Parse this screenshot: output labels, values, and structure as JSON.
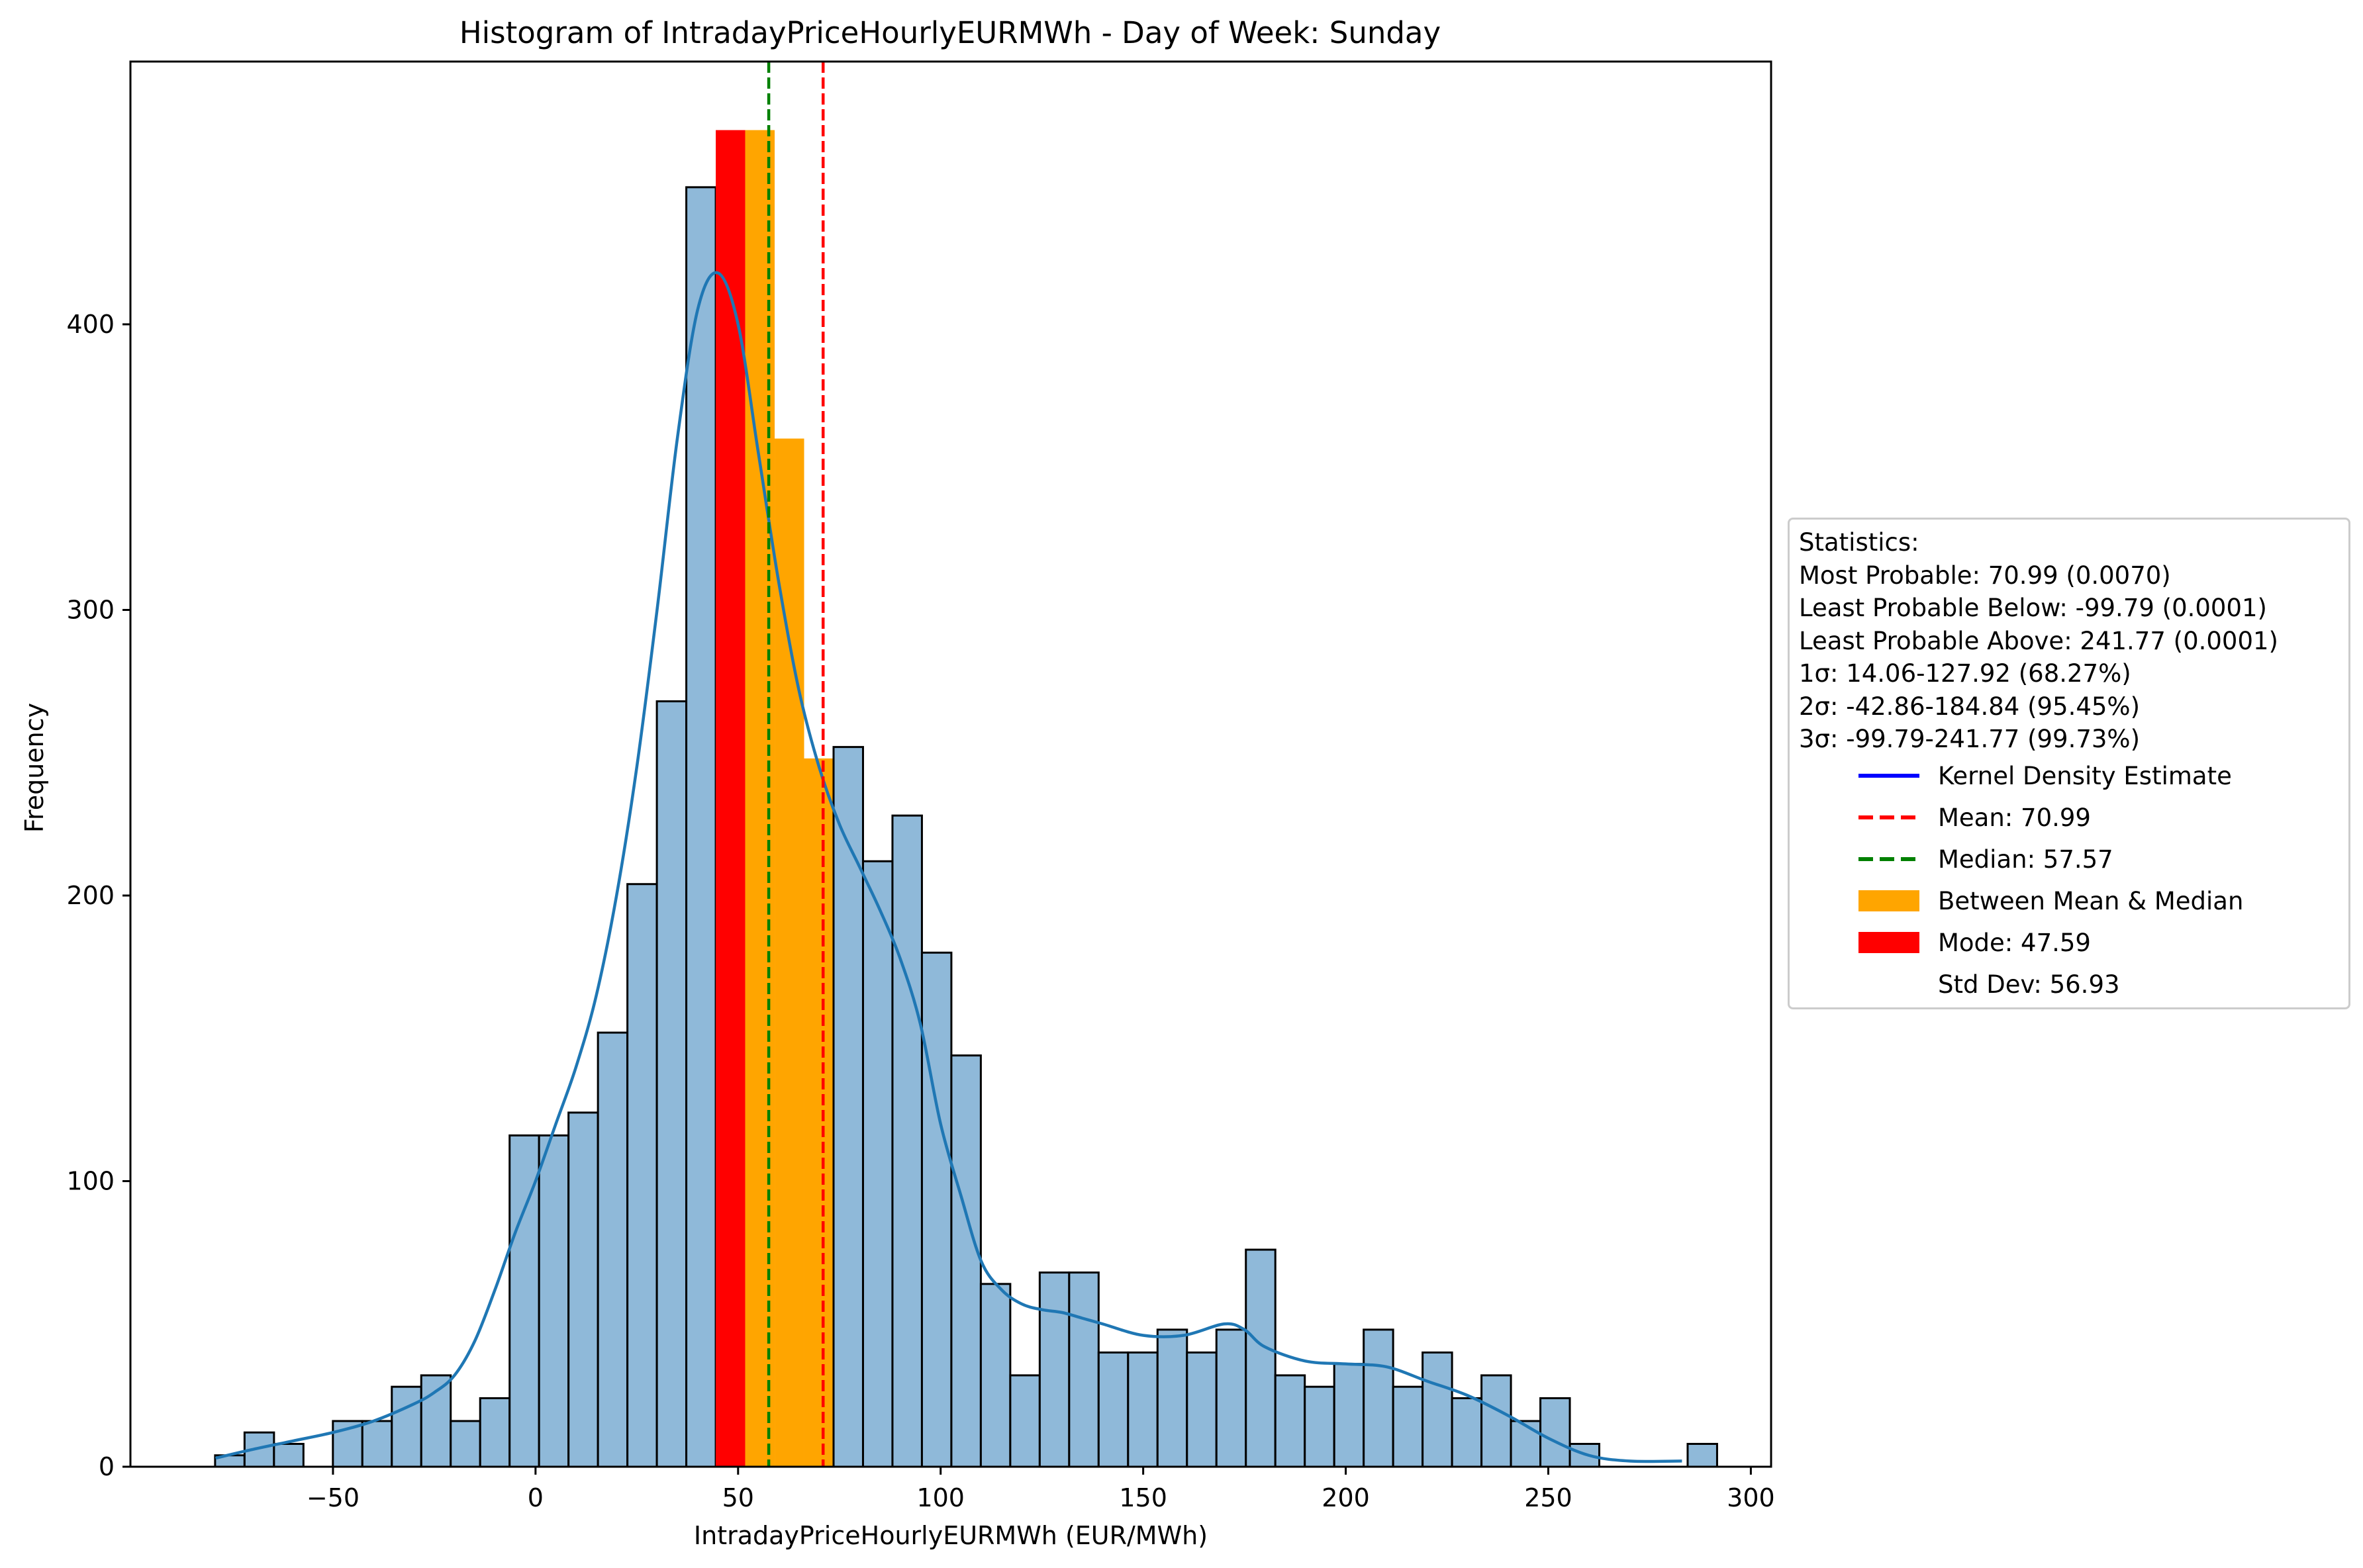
{
  "chart_data": {
    "type": "bar",
    "title": "Histogram of IntradayPriceHourlyEURMWh - Day of Week: Sunday",
    "xlabel": "IntradayPriceHourlyEURMWh (EUR/MWh)",
    "ylabel": "Frequency",
    "xlim": [
      -100,
      305
    ],
    "ylim": [
      0,
      492
    ],
    "x_ticks": [
      -50,
      0,
      50,
      100,
      150,
      200,
      250,
      300
    ],
    "x_tick_labels": [
      "−50",
      "0",
      "50",
      "100",
      "150",
      "200",
      "250",
      "300"
    ],
    "y_ticks": [
      0,
      100,
      200,
      300,
      400
    ],
    "y_tick_labels": [
      "0",
      "100",
      "200",
      "300",
      "400"
    ],
    "grid": false,
    "legend_position": "center-right, outside plot",
    "bin_start": -79.1,
    "bin_width": 7.27,
    "histogram": [
      4,
      12,
      8,
      0,
      16,
      16,
      28,
      32,
      16,
      24,
      116,
      116,
      124,
      152,
      204,
      268,
      448,
      468,
      468,
      360,
      248,
      252,
      212,
      228,
      180,
      144,
      64,
      32,
      68,
      68,
      40,
      40,
      48,
      40,
      48,
      76,
      32,
      28,
      36,
      48,
      28,
      40,
      24,
      32,
      16,
      24,
      8,
      0,
      0,
      0,
      8
    ],
    "highlighted_bins": [
      {
        "index": 17,
        "color": "#ff0000",
        "label": "Mode"
      },
      {
        "index": 18,
        "color": "#ffa500",
        "label": "Between Mean & Median"
      },
      {
        "index": 19,
        "color": "#ffa500",
        "label": "Between Mean & Median"
      },
      {
        "index": 20,
        "color": "#ffa500",
        "label": "Between Mean & Median"
      }
    ],
    "kde": {
      "x": [
        -79,
        -70,
        -60,
        -50,
        -40,
        -30,
        -25,
        -20,
        -15,
        -10,
        -5,
        0,
        5,
        10,
        15,
        20,
        25,
        30,
        35,
        40,
        45,
        50,
        55,
        60,
        65,
        70,
        75,
        80,
        85,
        90,
        95,
        100,
        105,
        110,
        115,
        120,
        125,
        130,
        135,
        140,
        150,
        160,
        170,
        175,
        180,
        190,
        200,
        210,
        220,
        230,
        240,
        250,
        260,
        270,
        283
      ],
      "y": [
        3,
        6,
        9,
        12,
        16,
        22,
        26,
        32,
        44,
        62,
        82,
        100,
        120,
        140,
        165,
        200,
        245,
        300,
        360,
        405,
        418,
        400,
        355,
        310,
        272,
        245,
        225,
        210,
        195,
        178,
        155,
        120,
        95,
        72,
        62,
        57,
        55,
        54,
        52,
        50,
        46,
        46,
        50,
        48,
        42,
        37,
        36,
        35,
        30,
        25,
        18,
        10,
        4,
        2,
        2
      ],
      "color": "#1f77b4"
    },
    "mean": {
      "value": 70.99,
      "color": "#ff0000"
    },
    "median": {
      "value": 57.57,
      "color": "#008000"
    },
    "colors": {
      "bars": "#8fb9d9",
      "bar_edge": "#000000",
      "mode": "#ff0000",
      "between": "#ffa500"
    }
  },
  "legend": {
    "stats_title": "Statistics:",
    "stats_lines": [
      "Most Probable: 70.99 (0.0070)",
      "Least Probable Below: -99.79 (0.0001)",
      "Least Probable Above: 241.77 (0.0001)",
      "1σ: 14.06-127.92 (68.27%)",
      "2σ: -42.86-184.84 (95.45%)",
      "3σ: -99.79-241.77 (99.73%)"
    ],
    "entries": [
      {
        "label": "Kernel Density Estimate",
        "kind": "line",
        "color": "#0000ff"
      },
      {
        "label": "Mean: 70.99",
        "kind": "dashed",
        "color": "#ff0000"
      },
      {
        "label": "Median: 57.57",
        "kind": "dashed",
        "color": "#008000"
      },
      {
        "label": "Between Mean & Median",
        "kind": "patch",
        "color": "#ffa500"
      },
      {
        "label": "Mode: 47.59",
        "kind": "patch",
        "color": "#ff0000"
      },
      {
        "label": "Std Dev: 56.93",
        "kind": "none",
        "color": ""
      }
    ]
  }
}
